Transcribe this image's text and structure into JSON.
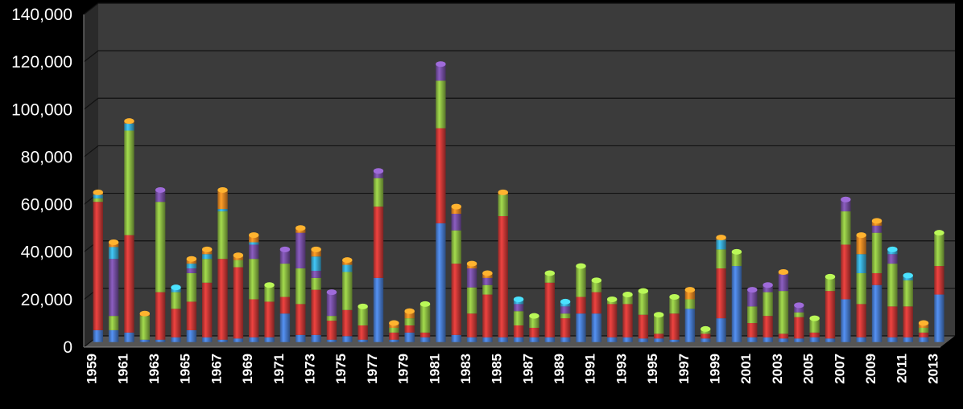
{
  "chart_data": {
    "type": "bar",
    "stacked": true,
    "grid": true,
    "legend": "none",
    "ylim": [
      0,
      140000
    ],
    "y_ticks": [
      "0",
      "20,000",
      "40,000",
      "60,000",
      "80,000",
      "100,000",
      "120,000",
      "140,000"
    ],
    "categories": [
      "1959",
      "1960",
      "1961",
      "1962",
      "1963",
      "1964",
      "1965",
      "1966",
      "1967",
      "1968",
      "1969",
      "1970",
      "1971",
      "1972",
      "1973",
      "1974",
      "1975",
      "1976",
      "1977",
      "1978",
      "1979",
      "1980",
      "1981",
      "1982",
      "1983",
      "1984",
      "1985",
      "1986",
      "1987",
      "1988",
      "1989",
      "1990",
      "1991",
      "1992",
      "1993",
      "1994",
      "1995",
      "1996",
      "1997",
      "1998",
      "1999",
      "2000",
      "2001",
      "2002",
      "2003",
      "2004",
      "2005",
      "2006",
      "2007",
      "2008",
      "2009",
      "2010",
      "2011",
      "2012",
      "2013"
    ],
    "x_tick_labels": [
      "1959",
      "1961",
      "1963",
      "1965",
      "1967",
      "1969",
      "1971",
      "1973",
      "1975",
      "1977",
      "1979",
      "1981",
      "1983",
      "1985",
      "1987",
      "1989",
      "1991",
      "1993",
      "1995",
      "1997",
      "1999",
      "2001",
      "2003",
      "2005",
      "2007",
      "2009",
      "2011",
      "2013"
    ],
    "series": [
      {
        "color": "#4a7fd4",
        "values": [
          5000,
          5000,
          4000,
          1000,
          1000,
          2000,
          5000,
          2000,
          1000,
          1500,
          2000,
          2000,
          12000,
          3000,
          3000,
          1000,
          2500,
          1000,
          27000,
          1000,
          4000,
          2000,
          50000,
          3000,
          2000,
          2000,
          2000,
          2000,
          2000,
          2000,
          2000,
          12000,
          12000,
          2000,
          2000,
          1500,
          1500,
          1000,
          14000,
          1500,
          10000,
          32000,
          2000,
          2000,
          1500,
          1500,
          2000,
          1500,
          18000,
          2000,
          24000,
          2000,
          2000,
          2000,
          20000
        ]
      },
      {
        "color": "#d03a38",
        "values": [
          54000,
          0,
          41000,
          0,
          20000,
          12000,
          12000,
          23000,
          34000,
          30000,
          16000,
          15000,
          7000,
          13000,
          19000,
          8000,
          11000,
          6000,
          30000,
          3000,
          3000,
          2000,
          40000,
          30000,
          10000,
          18000,
          51000,
          5000,
          4000,
          23000,
          8000,
          7000,
          9000,
          14000,
          14000,
          10000,
          2000,
          11000,
          0,
          2000,
          21000,
          0,
          6000,
          9000,
          2000,
          9000,
          2000,
          20000,
          23000,
          14000,
          5000,
          13000,
          13000,
          2000,
          12000
        ]
      },
      {
        "color": "#8fbf44",
        "values": [
          1500,
          6000,
          44000,
          10000,
          38000,
          7000,
          12000,
          10000,
          20000,
          3000,
          17000,
          7000,
          14000,
          15000,
          5000,
          2000,
          16000,
          8000,
          12000,
          2000,
          3000,
          12000,
          20000,
          14000,
          11000,
          4000,
          9000,
          6000,
          5000,
          4000,
          2000,
          13000,
          5000,
          2000,
          4000,
          10000,
          8000,
          7000,
          4000,
          2000,
          8000,
          6000,
          7000,
          10000,
          18000,
          2000,
          6000,
          6000,
          14000,
          13000,
          17000,
          18000,
          11000,
          2000,
          14000
        ]
      },
      {
        "color": "#7a52a8",
        "values": [
          0,
          24000,
          0,
          0,
          5000,
          0,
          2000,
          0,
          0,
          0,
          6000,
          0,
          6000,
          15000,
          3000,
          10000,
          0,
          0,
          3000,
          0,
          0,
          0,
          7000,
          7000,
          8000,
          3000,
          0,
          3000,
          0,
          0,
          3000,
          0,
          0,
          0,
          0,
          0,
          0,
          0,
          0,
          0,
          0,
          0,
          7000,
          3000,
          7000,
          3000,
          0,
          0,
          5000,
          0,
          3000,
          4000,
          0,
          0,
          0
        ]
      },
      {
        "color": "#3aaed8",
        "values": [
          1500,
          5000,
          3000,
          0,
          0,
          2000,
          2000,
          2000,
          1000,
          0,
          1000,
          0,
          0,
          0,
          6000,
          0,
          3000,
          0,
          0,
          0,
          0,
          0,
          0,
          0,
          0,
          0,
          0,
          2000,
          0,
          0,
          2000,
          0,
          0,
          0,
          0,
          0,
          0,
          0,
          0,
          0,
          4000,
          0,
          0,
          0,
          0,
          0,
          0,
          0,
          0,
          8000,
          0,
          2000,
          2000,
          0,
          0
        ]
      },
      {
        "color": "#f08a24",
        "values": [
          1000,
          2000,
          1000,
          1000,
          0,
          0,
          2000,
          2000,
          8000,
          2000,
          3000,
          0,
          0,
          2000,
          3000,
          0,
          2000,
          0,
          0,
          2000,
          3000,
          0,
          0,
          3000,
          2000,
          2000,
          1000,
          0,
          0,
          0,
          0,
          0,
          0,
          0,
          0,
          0,
          0,
          0,
          4000,
          0,
          1000,
          0,
          0,
          0,
          1000,
          0,
          0,
          0,
          0,
          8000,
          2000,
          0,
          0,
          2000,
          0
        ]
      }
    ]
  }
}
